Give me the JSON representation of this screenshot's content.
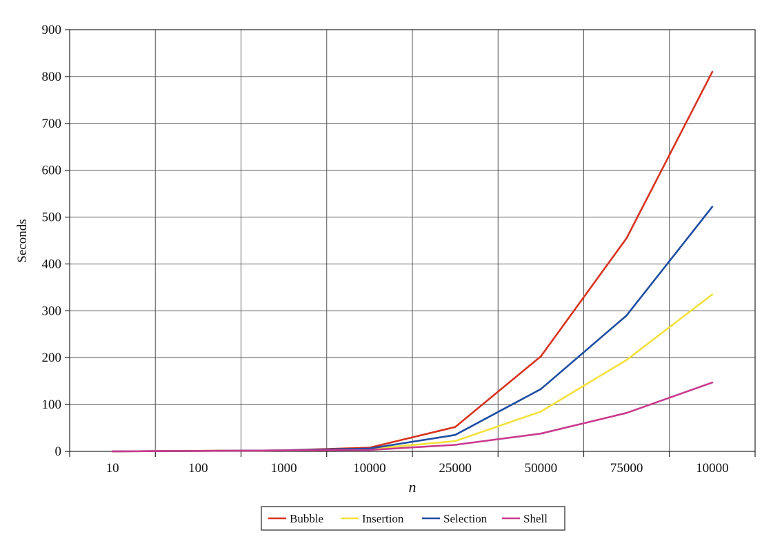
{
  "chart_data": {
    "type": "line",
    "title": "",
    "xlabel": "n",
    "ylabel": "Seconds",
    "categories": [
      "10",
      "100",
      "1000",
      "10000",
      "25000",
      "50000",
      "75000",
      "10000"
    ],
    "ylim": [
      0,
      900
    ],
    "yticks": [
      0,
      100,
      200,
      300,
      400,
      500,
      600,
      700,
      800,
      900
    ],
    "grid": true,
    "legend_position": "bottom",
    "series": [
      {
        "name": "Bubble",
        "color": "#d8331f",
        "values": [
          0,
          1,
          2,
          8,
          52,
          203,
          455,
          810
        ]
      },
      {
        "name": "Insertion",
        "color": "#f2e13a",
        "values": [
          0,
          1,
          2,
          5,
          22,
          85,
          195,
          335
        ]
      },
      {
        "name": "Selection",
        "color": "#1f4ea3",
        "values": [
          0,
          1,
          2,
          6,
          35,
          133,
          290,
          522
        ]
      },
      {
        "name": "Shell",
        "color": "#c93a8e",
        "values": [
          0,
          1,
          2,
          3,
          14,
          38,
          82,
          147
        ]
      }
    ]
  }
}
